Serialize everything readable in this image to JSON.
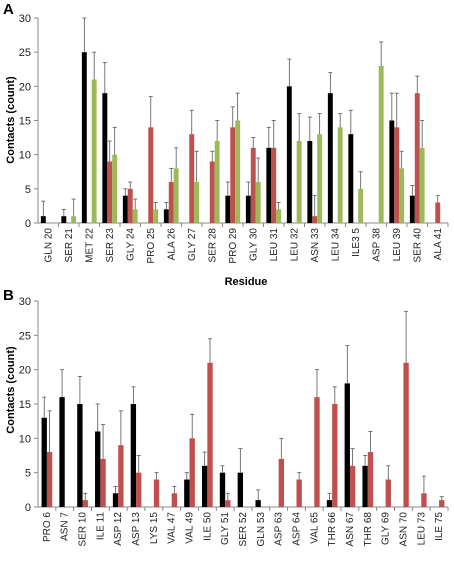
{
  "colors": {
    "black": "#000000",
    "red": "#c0504d",
    "green": "#9bbb59",
    "error_bar": "#555555"
  },
  "chart_data": [
    {
      "type": "bar",
      "panel": "A",
      "xlabel": "Residue",
      "ylabel": "Contacts (count)",
      "ylim": [
        0,
        30
      ],
      "yticks": [
        0,
        5,
        10,
        15,
        20,
        25,
        30
      ],
      "categories": [
        "GLN 20",
        "SER 21",
        "MET 22",
        "SER 23",
        "GLY 24",
        "PRO 25",
        "ALA 26",
        "GLY 27",
        "SER 28",
        "PRO 29",
        "GLY 30",
        "LEU 31",
        "LEU 32",
        "ASN 33",
        "LEU 34",
        "ILE3 5",
        "ASP 38",
        "LEU 39",
        "SER 40",
        "ALA 41"
      ],
      "series": [
        {
          "color": "black",
          "values": [
            1,
            1,
            25,
            19,
            4,
            0,
            2,
            0,
            0,
            4,
            4,
            11,
            20,
            12,
            19,
            13,
            0,
            15,
            4,
            0
          ],
          "errors": [
            2.2,
            1,
            5,
            4.5,
            1,
            0,
            1,
            0,
            0,
            2,
            2,
            3,
            4,
            3.5,
            3,
            3.5,
            0,
            4,
            1.5,
            0
          ]
        },
        {
          "color": "red",
          "values": [
            0,
            0,
            0,
            9,
            5,
            14,
            6,
            13,
            9,
            14,
            11,
            11,
            0,
            1,
            0,
            0,
            0,
            14,
            19,
            3
          ],
          "errors": [
            0,
            0,
            0,
            3,
            1,
            4.5,
            2,
            3.5,
            1.5,
            3,
            1.5,
            4,
            0,
            3,
            0,
            0,
            0,
            5,
            2.5,
            1
          ]
        },
        {
          "color": "green",
          "values": [
            0,
            1,
            21,
            10,
            2,
            2,
            8,
            6,
            12,
            15,
            6,
            2,
            12,
            13,
            14,
            5,
            23,
            8,
            11,
            0
          ],
          "errors": [
            0,
            2.5,
            4,
            4,
            1.5,
            1,
            3,
            4.5,
            3,
            4,
            3.5,
            1,
            4,
            3,
            2,
            2.5,
            3.5,
            2.5,
            4,
            0
          ]
        }
      ]
    },
    {
      "type": "bar",
      "panel": "B",
      "xlabel": "",
      "ylabel": "Contacts (count)",
      "ylim": [
        0,
        30
      ],
      "yticks": [
        0,
        5,
        10,
        15,
        20,
        25,
        30
      ],
      "categories": [
        "PRO 6",
        "ASN 7",
        "SER 10",
        "ILE 11",
        "ASP 12",
        "ASP 13",
        "LYS 15",
        "VAL 47",
        "VAL 49",
        "ILE 50",
        "GLY 51",
        "SER 52",
        "GLN 53",
        "ASP 63",
        "ASP 64",
        "VAL 65",
        "THR 66",
        "ASN 67",
        "THR 68",
        "GLY 69",
        "ASN 70",
        "LEU 73",
        "ILE 75"
      ],
      "series": [
        {
          "color": "black",
          "values": [
            13,
            16,
            15,
            11,
            2,
            15,
            0,
            0,
            4,
            6,
            5,
            5,
            1,
            0,
            0,
            0,
            1,
            18,
            6,
            0,
            0,
            0,
            0
          ],
          "errors": [
            3,
            4,
            4,
            4,
            1,
            2.5,
            0,
            0,
            1,
            2,
            1,
            3.5,
            1.5,
            0,
            0,
            0,
            1,
            5.5,
            1.5,
            0,
            0,
            0,
            0
          ]
        },
        {
          "color": "red",
          "values": [
            8,
            0,
            1,
            7,
            9,
            5,
            4,
            2,
            10,
            21,
            1,
            0,
            0,
            7,
            4,
            16,
            15,
            6,
            8,
            4,
            21,
            2,
            1
          ]
        }
      ]
    }
  ]
}
